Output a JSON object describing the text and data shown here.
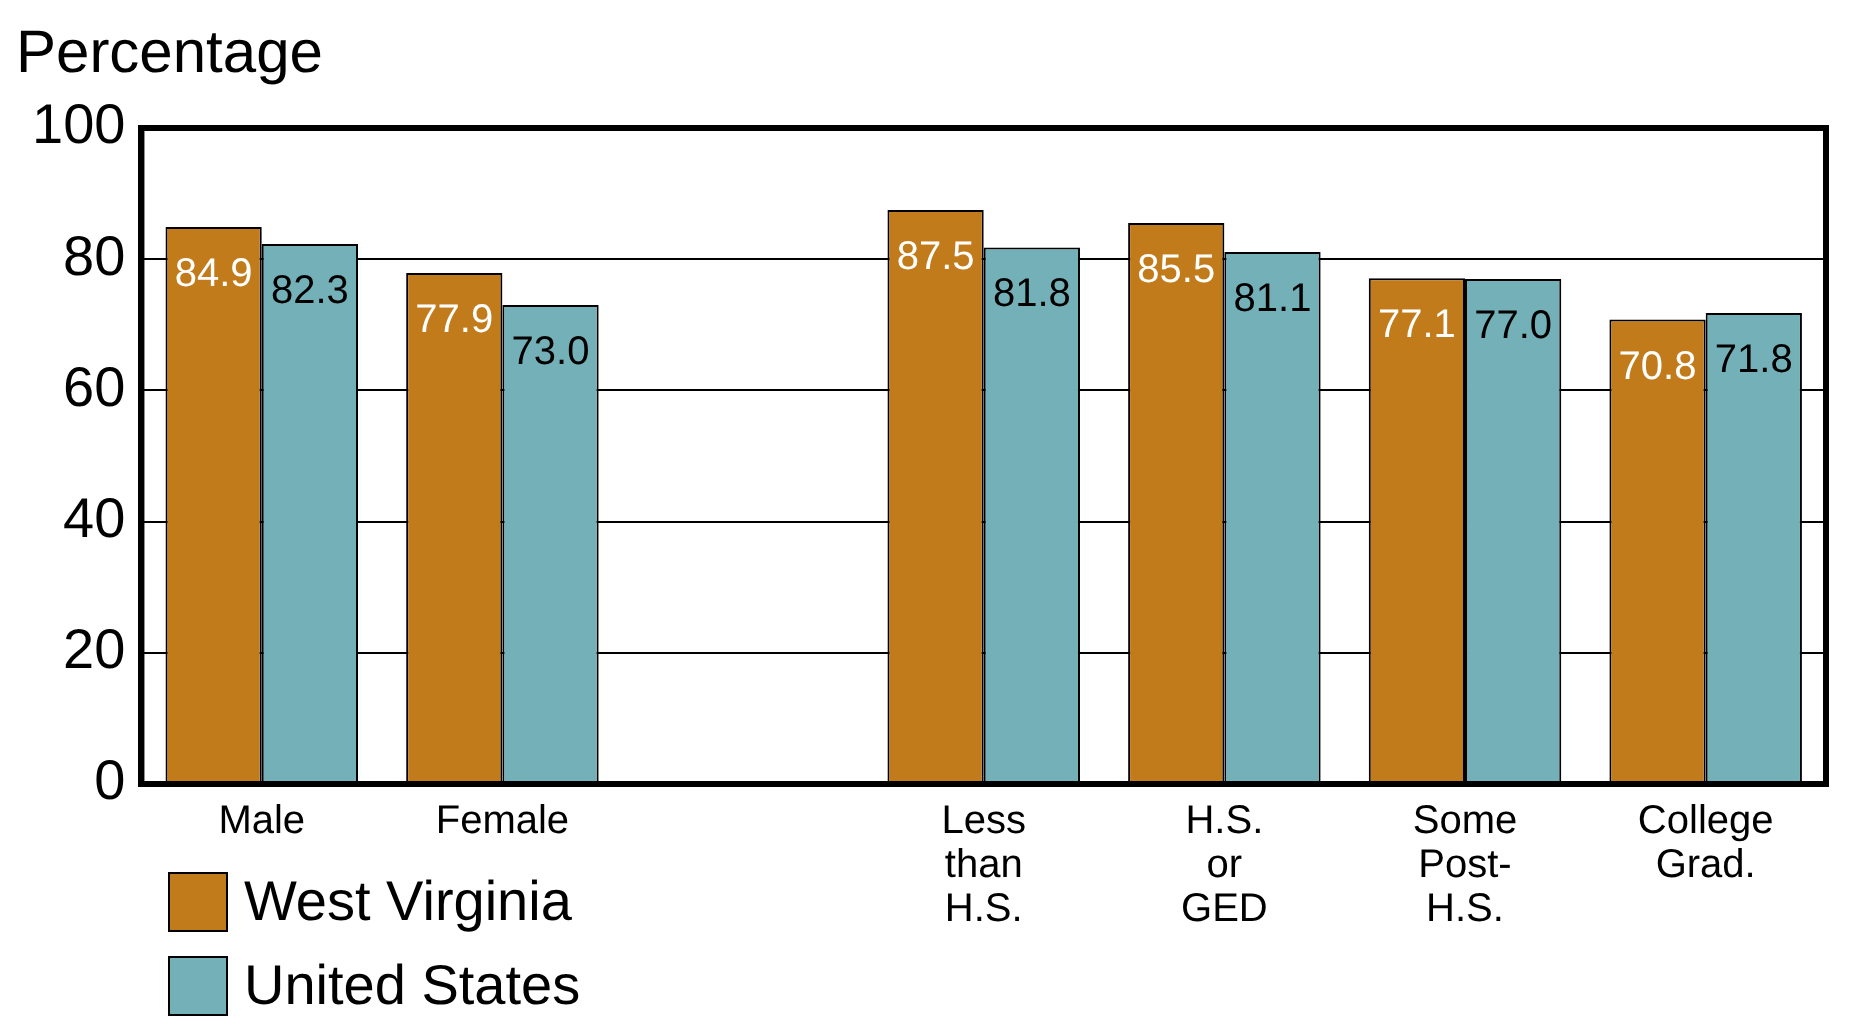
{
  "chart_data": {
    "type": "bar",
    "ylabel": "Percentage",
    "categories": [
      "Male",
      "Female",
      null,
      "Less than H.S.",
      "H.S. or GED",
      "Some Post-H.S.",
      "College Grad."
    ],
    "series": [
      {
        "name": "West Virginia",
        "color": "#c27b1b",
        "values": [
          84.9,
          77.9,
          null,
          87.5,
          85.5,
          77.1,
          70.8
        ],
        "value_labels": [
          "84.9",
          "77.9",
          null,
          "87.5",
          "85.5",
          "77.1",
          "70.8"
        ]
      },
      {
        "name": "United States",
        "color": "#74b0b8",
        "values": [
          82.3,
          73.0,
          null,
          81.8,
          81.1,
          77.0,
          71.8
        ],
        "value_labels": [
          "82.3",
          "73.0",
          null,
          "81.8",
          "81.1",
          "77.0",
          "71.8"
        ]
      }
    ],
    "ylim": [
      0,
      100
    ],
    "yticks": [
      0,
      20,
      40,
      60,
      80,
      100
    ],
    "grid": "y",
    "legend": "bottom left"
  }
}
